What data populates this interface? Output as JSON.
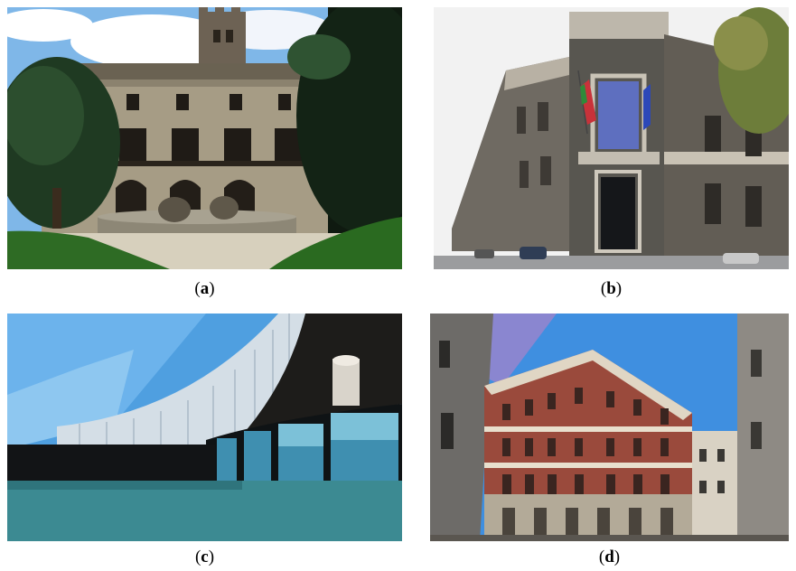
{
  "figure": {
    "panels": [
      {
        "id": "a",
        "caption_open": "(",
        "caption_letter": "a",
        "caption_close": ")"
      },
      {
        "id": "b",
        "caption_open": "(",
        "caption_letter": "b",
        "caption_close": ")"
      },
      {
        "id": "c",
        "caption_open": "(",
        "caption_letter": "c",
        "caption_close": ")"
      },
      {
        "id": "d",
        "caption_open": "(",
        "caption_letter": "d",
        "caption_close": ")"
      }
    ]
  },
  "colors": {
    "caption_text": "#000000",
    "background": "#ffffff"
  }
}
